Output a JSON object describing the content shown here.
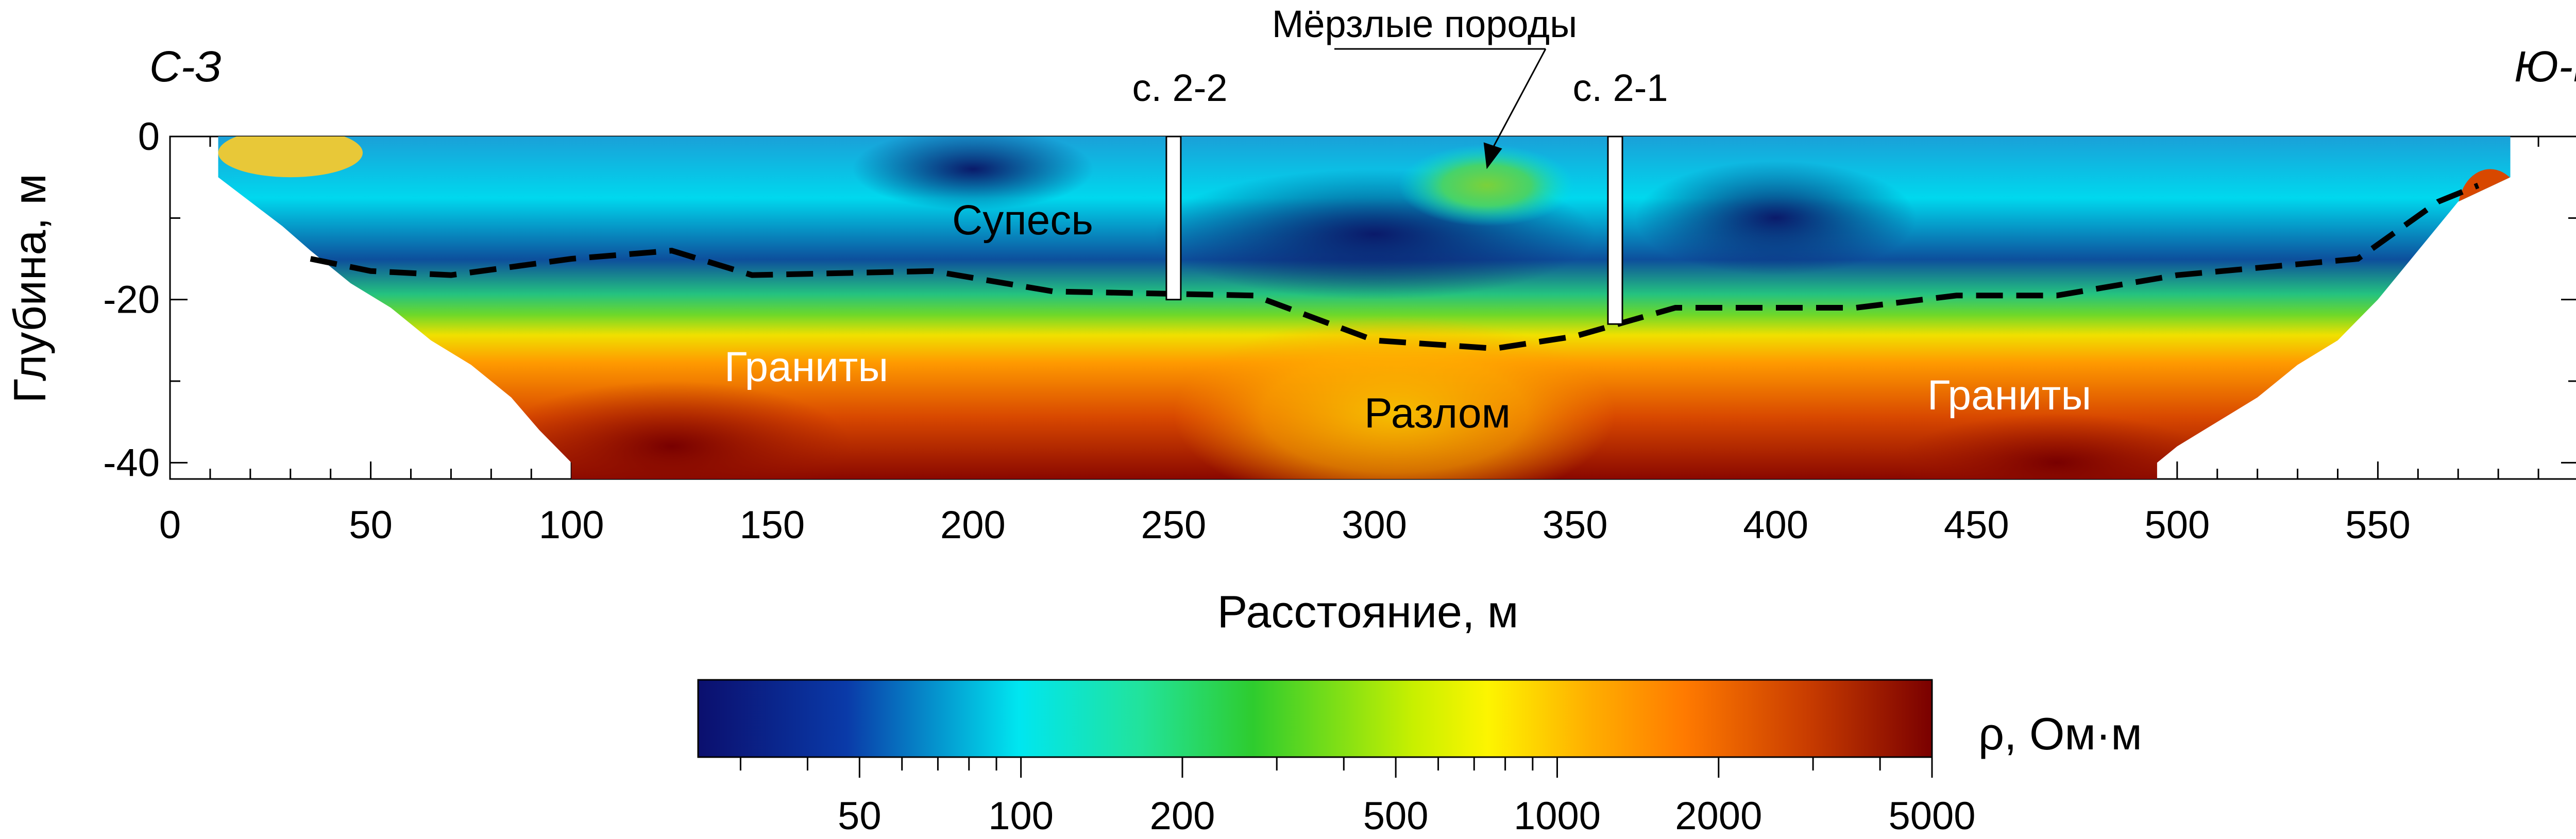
{
  "figure": {
    "left_label": "С-З",
    "right_label": "Ю-В",
    "ylabel": "Глубина, м",
    "xlabel": "Расстояние, м",
    "colorbar_label": "ρ, Ом·м"
  },
  "annotations": {
    "frozen": "Мёрзлые породы",
    "borehole_1": "с. 2-2",
    "borehole_2": "с. 2-1",
    "sandy_loam": "Супесь",
    "granite_left": "Граниты",
    "fault": "Разлом",
    "granite_right": "Граниты"
  },
  "colors": {
    "low": "#0b0f6e",
    "cyan": "#00e6f0",
    "green": "#2ecc2e",
    "yellow": "#fdf500",
    "orange": "#ff7a00",
    "high": "#7a0000",
    "boundary": "#000000"
  },
  "chart_data": {
    "type": "heatmap",
    "x_unit": "м",
    "y_unit": "м",
    "xlim": [
      0,
      600
    ],
    "ylim": [
      -42,
      0
    ],
    "x_ticks": [
      "0",
      "50",
      "100",
      "150",
      "200",
      "250",
      "300",
      "350",
      "400",
      "450",
      "500",
      "550"
    ],
    "x_tick_values": [
      0,
      50,
      100,
      150,
      200,
      250,
      300,
      350,
      400,
      450,
      500,
      550
    ],
    "y_ticks": [
      "0",
      "-20",
      "-40"
    ],
    "y_tick_values": [
      0,
      -20,
      -40
    ],
    "colorbar": {
      "scale": "log",
      "range": [
        25,
        5000
      ],
      "ticks": [
        "50",
        "100",
        "200",
        "500",
        "1000",
        "2000",
        "5000"
      ],
      "tick_values": [
        50,
        100,
        200,
        500,
        1000,
        2000,
        5000
      ]
    },
    "section_top": [
      [
        12,
        0
      ],
      [
        583,
        0
      ]
    ],
    "section_bottom_outline": [
      [
        12,
        -5
      ],
      [
        20,
        -8
      ],
      [
        28,
        -11
      ],
      [
        35,
        -14
      ],
      [
        45,
        -18
      ],
      [
        55,
        -21
      ],
      [
        65,
        -25
      ],
      [
        75,
        -28
      ],
      [
        85,
        -32
      ],
      [
        92,
        -36
      ],
      [
        100,
        -40
      ],
      [
        100,
        -42
      ],
      [
        495,
        -42
      ],
      [
        495,
        -40
      ],
      [
        500,
        -38
      ],
      [
        510,
        -35
      ],
      [
        520,
        -32
      ],
      [
        530,
        -28
      ],
      [
        540,
        -25
      ],
      [
        550,
        -20
      ],
      [
        560,
        -14
      ],
      [
        570,
        -8
      ],
      [
        583,
        -5
      ]
    ],
    "layer_boundary": [
      [
        35,
        -15
      ],
      [
        50,
        -16.5
      ],
      [
        70,
        -17
      ],
      [
        100,
        -15
      ],
      [
        125,
        -14
      ],
      [
        145,
        -17
      ],
      [
        190,
        -16.5
      ],
      [
        220,
        -19
      ],
      [
        270,
        -19.5
      ],
      [
        300,
        -25
      ],
      [
        330,
        -26
      ],
      [
        350,
        -24.5
      ],
      [
        375,
        -21
      ],
      [
        420,
        -21
      ],
      [
        445,
        -19.5
      ],
      [
        470,
        -19.5
      ],
      [
        500,
        -17
      ],
      [
        545,
        -15
      ],
      [
        565,
        -8
      ],
      [
        575,
        -6
      ]
    ],
    "boreholes": [
      {
        "name": "с. 2-2",
        "x": 250,
        "depth": -20
      },
      {
        "name": "с. 2-1",
        "x": 360,
        "depth": -23
      }
    ],
    "zones": [
      {
        "name": "Супесь",
        "x": 204,
        "y": -10,
        "resistivity_ohm_m": 40
      },
      {
        "name": "Мёрзлые породы",
        "x": 328,
        "y": -6,
        "resistivity_ohm_m": 200
      },
      {
        "name": "Граниты",
        "x": 125,
        "y": -28,
        "resistivity_ohm_m": 3000
      },
      {
        "name": "Разлом",
        "x": 311,
        "y": -34,
        "resistivity_ohm_m": 900
      },
      {
        "name": "Граниты",
        "x": 454,
        "y": -32,
        "resistivity_ohm_m": 3000
      }
    ]
  }
}
